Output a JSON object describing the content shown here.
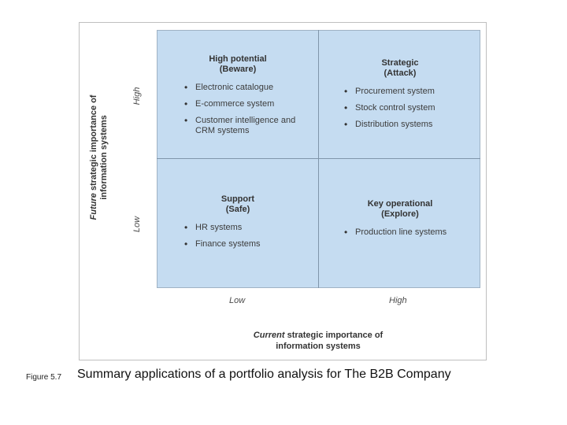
{
  "quadrants": {
    "top_left": {
      "title": "High potential",
      "subtitle": "(Beware)",
      "items": [
        "Electronic catalogue",
        "E-commerce system",
        "Customer intelligence and CRM systems"
      ]
    },
    "top_right": {
      "title": "Strategic",
      "subtitle": "(Attack)",
      "items": [
        "Procurement system",
        "Stock control system",
        "Distribution systems"
      ]
    },
    "bottom_left": {
      "title": "Support",
      "subtitle": "(Safe)",
      "items": [
        "HR systems",
        "Finance systems"
      ]
    },
    "bottom_right": {
      "title": "Key operational",
      "subtitle": "(Explore)",
      "items": [
        "Production line systems"
      ]
    }
  },
  "x_axis": {
    "emphasis": "Current",
    "label_rest": "strategic importance of",
    "label_line2": "information systems",
    "low": "Low",
    "high": "High"
  },
  "y_axis": {
    "emphasis": "Future",
    "label_rest": "strategic importance of",
    "label_line2": "information systems",
    "low": "Low",
    "high": "High"
  },
  "caption": {
    "figure_label": "Figure 5.7",
    "text": "Summary applications of a portfolio analysis for The B2B Company"
  }
}
